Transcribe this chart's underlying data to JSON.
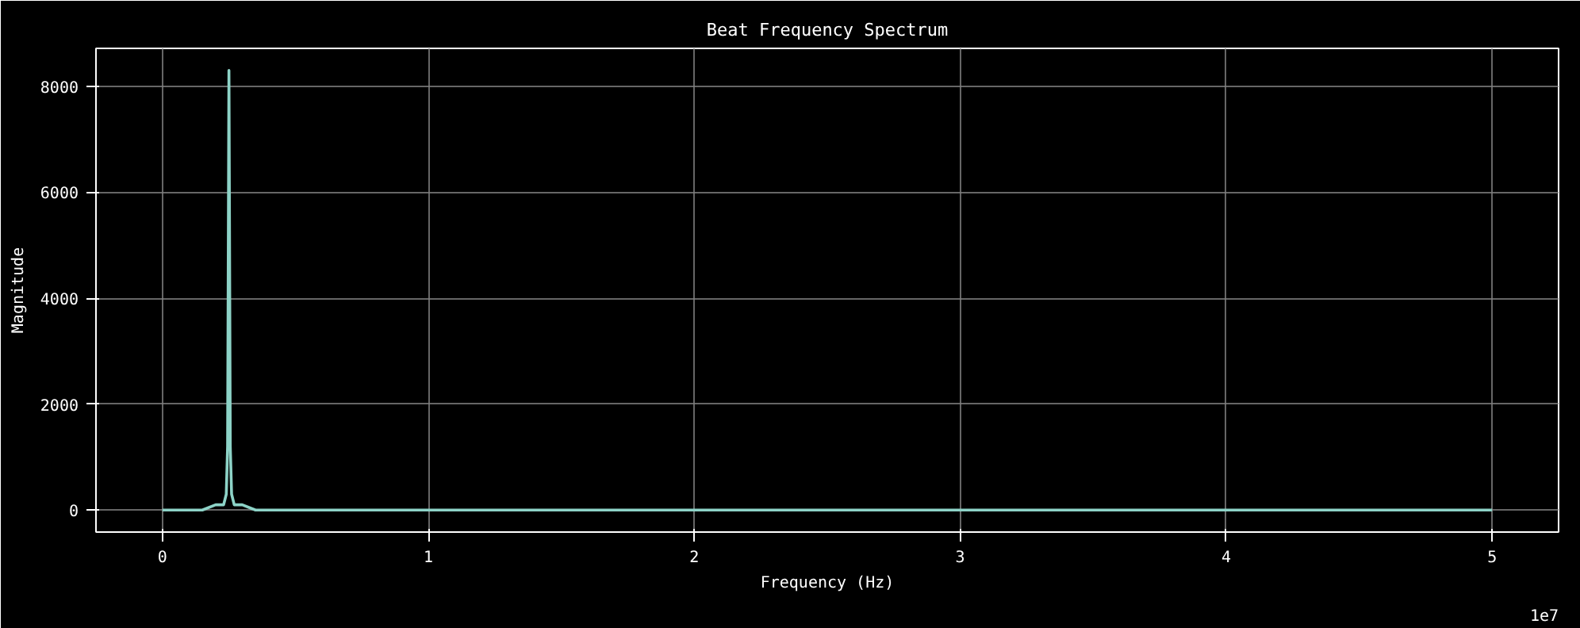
{
  "chart_data": {
    "type": "line",
    "title": "Beat Frequency Spectrum",
    "xlabel": "Frequency (Hz)",
    "ylabel": "Magnitude",
    "x": [
      0,
      0.05,
      0.1,
      0.15,
      0.2,
      0.23,
      0.24,
      0.245,
      0.25,
      0.255,
      0.26,
      0.27,
      0.3,
      0.35,
      0.4,
      0.5,
      0.7,
      1,
      2,
      3,
      4,
      5
    ],
    "series": [
      {
        "color": "#8dd3c7",
        "values": [
          0,
          0,
          0,
          0,
          100,
          100,
          300,
          1200,
          8300,
          1200,
          300,
          100,
          100,
          0,
          0,
          0,
          0,
          0,
          0,
          0,
          0,
          0
        ]
      }
    ],
    "xlim": [
      -0.25,
      5.25
    ],
    "xticks": [
      0,
      1,
      2,
      3,
      4,
      5
    ],
    "ylim": [
      -415,
      8715
    ],
    "yticks": [
      0,
      2000,
      4000,
      6000,
      8000
    ],
    "grid": true,
    "annotations": [
      "1e7"
    ]
  }
}
